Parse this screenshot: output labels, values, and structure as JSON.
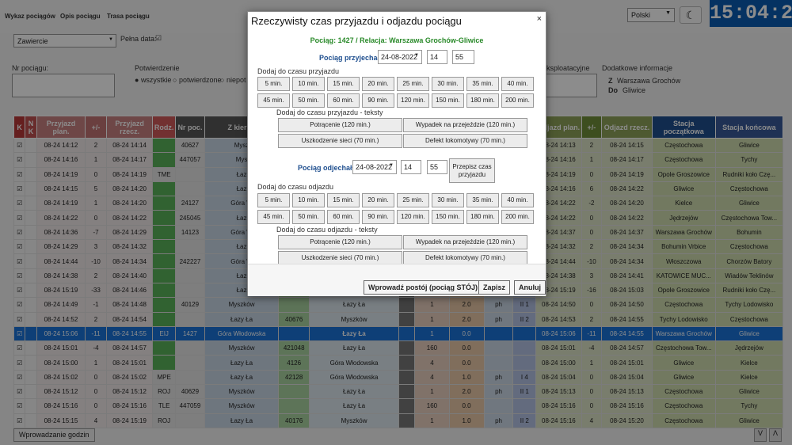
{
  "nav": {
    "items": [
      "Wykaz pociągów",
      "Opis pociągu",
      "Trasa pociągu"
    ]
  },
  "lang": {
    "value": "Polski"
  },
  "clock": "15:04:27",
  "filters": {
    "station": "Zawiercie",
    "full_date_label": "Pełna data:",
    "full_date_check": "☑",
    "train_no_label": "Nr pociągu:",
    "confirm_label": "Potwierdzenie",
    "confirm_opts": [
      "wszystkie",
      "potwierdzone",
      "niepot"
    ],
    "exploit_label": "ksploatacyjne",
    "extra_label": "Dodatkowe informacje",
    "from_prefix": "Z",
    "from_value": "Warszawa Grochów",
    "to_prefix": "Do",
    "to_value": "Gliwice"
  },
  "table": {
    "headers": [
      "K",
      "N K",
      "Przyjazd plan.",
      "+/-",
      "Przyjazd rzecz.",
      "Rodz.",
      "Nr poc.",
      "Z kierun",
      "",
      "",
      "",
      "",
      "",
      "",
      "",
      "Odjazd plan.",
      "+/-",
      "Odjazd rzecz.",
      "Stacja początkowa",
      "Stacja końcowa"
    ],
    "rows": [
      {
        "k": "☑",
        "arr_plan": "08-24 14:12",
        "d1": "2",
        "arr_real": "08-24 14:14",
        "kind": "",
        "no": "40627",
        "from": "Mysz",
        "c1": "",
        "c2": "",
        "c3": "",
        "c4": "",
        "c5": "",
        "c6": "",
        "c7": "",
        "dep_plan": "08-24 14:13",
        "d2": "2",
        "dep_real": "08-24 14:15",
        "st": "Częstochowa",
        "end": "Gliwice"
      },
      {
        "k": "☑",
        "arr_plan": "08-24 14:16",
        "d1": "1",
        "arr_real": "08-24 14:17",
        "kind": "",
        "no": "447057",
        "from": "Mys",
        "c1": "",
        "c2": "",
        "c3": "",
        "c4": "",
        "c5": "",
        "c6": "",
        "c7": "",
        "dep_plan": "08-24 14:16",
        "d2": "1",
        "dep_real": "08-24 14:17",
        "st": "Częstochowa",
        "end": "Tychy"
      },
      {
        "k": "☑",
        "arr_plan": "08-24 14:19",
        "d1": "0",
        "arr_real": "08-24 14:19",
        "kind": "TME",
        "no": "",
        "from": "Łaz",
        "c1": "",
        "c2": "",
        "c3": "",
        "c4": "",
        "c5": "",
        "c6": "",
        "c7": "",
        "dep_plan": "08-24 14:19",
        "d2": "0",
        "dep_real": "08-24 14:19",
        "st": "Opole Groszowice",
        "end": "Rudniki koło Czę..."
      },
      {
        "k": "☑",
        "arr_plan": "08-24 14:15",
        "d1": "5",
        "arr_real": "08-24 14:20",
        "kind": "",
        "no": "",
        "from": "Łaz",
        "c1": "",
        "c2": "",
        "c3": "",
        "c4": "",
        "c5": "",
        "c6": "",
        "c7": "",
        "dep_plan": "08-24 14:16",
        "d2": "6",
        "dep_real": "08-24 14:22",
        "st": "Gliwice",
        "end": "Częstochowa"
      },
      {
        "k": "☑",
        "arr_plan": "08-24 14:19",
        "d1": "1",
        "arr_real": "08-24 14:20",
        "kind": "",
        "no": "24127",
        "from": "Góra W",
        "c1": "",
        "c2": "",
        "c3": "",
        "c4": "",
        "c5": "",
        "c6": "",
        "c7": "",
        "dep_plan": "08-24 14:22",
        "d2": "-2",
        "dep_real": "08-24 14:20",
        "st": "Kielce",
        "end": "Gliwice"
      },
      {
        "k": "☑",
        "arr_plan": "08-24 14:22",
        "d1": "0",
        "arr_real": "08-24 14:22",
        "kind": "",
        "no": "245045",
        "from": "Łaz",
        "c1": "",
        "c2": "",
        "c3": "",
        "c4": "",
        "c5": "",
        "c6": "",
        "c7": "",
        "dep_plan": "08-24 14:22",
        "d2": "0",
        "dep_real": "08-24 14:22",
        "st": "Jędrzejów",
        "end": "Częstochowa Tow..."
      },
      {
        "k": "☑",
        "arr_plan": "08-24 14:36",
        "d1": "-7",
        "arr_real": "08-24 14:29",
        "kind": "",
        "no": "14123",
        "from": "Góra W",
        "c1": "",
        "c2": "",
        "c3": "",
        "c4": "",
        "c5": "",
        "c6": "",
        "c7": "",
        "dep_plan": "08-24 14:37",
        "d2": "0",
        "dep_real": "08-24 14:37",
        "st": "Warszawa Grochów",
        "end": "Bohumin"
      },
      {
        "k": "☑",
        "arr_plan": "08-24 14:29",
        "d1": "3",
        "arr_real": "08-24 14:32",
        "kind": "",
        "no": "",
        "from": "Łaz",
        "c1": "",
        "c2": "",
        "c3": "",
        "c4": "",
        "c5": "",
        "c6": "",
        "c7": "",
        "dep_plan": "08-24 14:32",
        "d2": "2",
        "dep_real": "08-24 14:34",
        "st": "Bohumin Vrbice",
        "end": "Częstochowa"
      },
      {
        "k": "☑",
        "arr_plan": "08-24 14:44",
        "d1": "-10",
        "arr_real": "08-24 14:34",
        "kind": "",
        "no": "242227",
        "from": "Góra W",
        "c1": "",
        "c2": "",
        "c3": "",
        "c4": "",
        "c5": "",
        "c6": "",
        "c7": "",
        "dep_plan": "08-24 14:44",
        "d2": "-10",
        "dep_real": "08-24 14:34",
        "st": "Włoszczowa",
        "end": "Chorzów Batory"
      },
      {
        "k": "☑",
        "arr_plan": "08-24 14:38",
        "d1": "2",
        "arr_real": "08-24 14:40",
        "kind": "",
        "no": "",
        "from": "Łaz",
        "c1": "",
        "c2": "",
        "c3": "",
        "c4": "",
        "c5": "",
        "c6": "",
        "c7": "",
        "dep_plan": "08-24 14:38",
        "d2": "3",
        "dep_real": "08-24 14:41",
        "st": "KATOWICE MUC...",
        "end": "Wiadów Teklinów"
      },
      {
        "k": "☑",
        "arr_plan": "08-24 15:19",
        "d1": "-33",
        "arr_real": "08-24 14:46",
        "kind": "",
        "no": "",
        "from": "Łaz",
        "c1": "",
        "c2": "",
        "c3": "",
        "c4": "",
        "c5": "",
        "c6": "",
        "c7": "",
        "dep_plan": "08-24 15:19",
        "d2": "-16",
        "dep_real": "08-24 15:03",
        "st": "Opole Groszowice",
        "end": "Rudniki koło Czę..."
      },
      {
        "k": "☑",
        "arr_plan": "08-24 14:49",
        "d1": "-1",
        "arr_real": "08-24 14:48",
        "kind": "",
        "no": "40129",
        "from": "Myszków",
        "c1": "",
        "c2": "Łazy Ła",
        "c3": "",
        "c4": "1",
        "c5": "2.0",
        "c6": "ph",
        "c7": "II 1",
        "dep_plan": "08-24 14:50",
        "d2": "0",
        "dep_real": "08-24 14:50",
        "st": "Częstochowa",
        "end": "Tychy Lodowisko"
      },
      {
        "k": "☑",
        "arr_plan": "08-24 14:52",
        "d1": "2",
        "arr_real": "08-24 14:54",
        "kind": "",
        "no": "",
        "from": "Łazy Ła",
        "c1": "40676",
        "c2": "Myszków",
        "c3": "",
        "c4": "1",
        "c5": "2.0",
        "c6": "ph",
        "c7": "II 2",
        "dep_plan": "08-24 14:53",
        "d2": "2",
        "dep_real": "08-24 14:55",
        "st": "Tychy Lodowisko",
        "end": "Częstochowa"
      },
      {
        "k": "☑",
        "arr_plan": "08-24 15:06",
        "d1": "-11",
        "arr_real": "08-24 14:55",
        "kind": "EIJ",
        "no": "1427",
        "from": "Góra Włodowska",
        "c1": "",
        "c2": "Łazy Ła",
        "c3": "",
        "c4": "1",
        "c5": "0.0",
        "c6": "",
        "c7": "",
        "dep_plan": "08-24 15:06",
        "d2": "-11",
        "dep_real": "08-24 14:55",
        "st": "Warszawa Grochów",
        "end": "Gliwice",
        "selected": true
      },
      {
        "k": "☑",
        "arr_plan": "08-24 15:01",
        "d1": "-4",
        "arr_real": "08-24 14:57",
        "kind": "",
        "no": "",
        "from": "Myszków",
        "c1": "421048",
        "c2": "Łazy Ła",
        "c3": "",
        "c4": "160",
        "c5": "0.0",
        "c6": "",
        "c7": "",
        "dep_plan": "08-24 15:01",
        "d2": "-4",
        "dep_real": "08-24 14:57",
        "st": "Częstochowa Tow...",
        "end": "Jędrzejów"
      },
      {
        "k": "☑",
        "arr_plan": "08-24 15:00",
        "d1": "1",
        "arr_real": "08-24 15:01",
        "kind": "",
        "no": "",
        "from": "Łazy Ła",
        "c1": "4126",
        "c2": "Góra Włodowska",
        "c3": "",
        "c4": "4",
        "c5": "0.0",
        "c6": "",
        "c7": "",
        "dep_plan": "08-24 15:00",
        "d2": "1",
        "dep_real": "08-24 15:01",
        "st": "Gliwice",
        "end": "Kielce"
      },
      {
        "k": "☑",
        "arr_plan": "08-24 15:02",
        "d1": "0",
        "arr_real": "08-24 15:02",
        "kind": "MPE",
        "no": "",
        "from": "Łazy Ła",
        "c1": "42128",
        "c2": "Góra Włodowska",
        "c3": "",
        "c4": "4",
        "c5": "1.0",
        "c6": "ph",
        "c7": "I 4",
        "dep_plan": "08-24 15:04",
        "d2": "0",
        "dep_real": "08-24 15:04",
        "st": "Gliwice",
        "end": "Kielce"
      },
      {
        "k": "☑",
        "arr_plan": "08-24 15:12",
        "d1": "0",
        "arr_real": "08-24 15:12",
        "kind": "ROJ",
        "no": "40629",
        "from": "Myszków",
        "c1": "",
        "c2": "Łazy Ła",
        "c3": "",
        "c4": "1",
        "c5": "2.0",
        "c6": "ph",
        "c7": "II 1",
        "dep_plan": "08-24 15:13",
        "d2": "0",
        "dep_real": "08-24 15:13",
        "st": "Częstochowa",
        "end": "Gliwice"
      },
      {
        "k": "☑",
        "arr_plan": "08-24 15:16",
        "d1": "0",
        "arr_real": "08-24 15:16",
        "kind": "TLE",
        "no": "447059",
        "from": "Myszków",
        "c1": "",
        "c2": "Łazy Ła",
        "c3": "",
        "c4": "160",
        "c5": "0.0",
        "c6": "",
        "c7": "",
        "dep_plan": "08-24 15:16",
        "d2": "0",
        "dep_real": "08-24 15:16",
        "st": "Częstochowa",
        "end": "Tychy"
      },
      {
        "k": "☑",
        "arr_plan": "08-24 15:15",
        "d1": "4",
        "arr_real": "08-24 15:19",
        "kind": "ROJ",
        "no": "",
        "from": "Łazy Ła",
        "c1": "40176",
        "c2": "Myszków",
        "c3": "",
        "c4": "1",
        "c5": "1.0",
        "c6": "ph",
        "c7": "II 2",
        "dep_plan": "08-24 15:16",
        "d2": "4",
        "dep_real": "08-24 15:20",
        "st": "Częstochowa",
        "end": "Gliwice"
      }
    ]
  },
  "bottom": {
    "button": "Wprowadzanie godzin",
    "nav": [
      "V",
      "Λ"
    ]
  },
  "dialog": {
    "title": "Rzeczywisty czas przyjazdu i odjazdu pociągu",
    "close": "×",
    "train_info": "Pociąg: 1427 / Relacja: Warszawa Grochów-Gliwice",
    "arrival_label": "Pociąg przyjechał:",
    "arrival_date": "24-08-2022",
    "arrival_hour": "14",
    "arrival_min": "55",
    "add_arrival_label": "Dodaj do czasu przyjazdu",
    "minute_buttons": [
      "5 min.",
      "10 min.",
      "15 min.",
      "20 min.",
      "25 min.",
      "30 min.",
      "35 min.",
      "40 min.",
      "45 min.",
      "50 min.",
      "60 min.",
      "90 min.",
      "120 min.",
      "150 min.",
      "180 min.",
      "200 min."
    ],
    "add_arrival_text_label": "Dodaj do czasu przyjazdu - teksty",
    "text_buttons": [
      "Potrącenie (120 min.)",
      "Wypadek na przejeździe (120 min.)",
      "Uszkodzenie sieci (70 min.)",
      "Defekt lokomotywy (70 min.)"
    ],
    "departure_label": "Pociąg odjechał:",
    "departure_date": "24-08-2022",
    "departure_hour": "14",
    "departure_min": "55",
    "copy_button": "Przepisz czas przyjazdu",
    "add_departure_label": "Dodaj do czasu odjazdu",
    "add_departure_text_label": "Dodaj do czasu odjazdu - teksty",
    "stop_button": "Wprowadź postój (pociąg STÓJ)",
    "save_button": "Zapisz",
    "cancel_button": "Anuluj"
  },
  "colors": {
    "hdr_k": "#b83a3a",
    "hdr_nk": "#c05050",
    "hdr_plan": "#c98282",
    "hdr_d": "#c27373",
    "hdr_kind": "#d05a5a",
    "hdr_no": "#585858",
    "hdr_dep": "#8fa35a",
    "hdr_dep_d": "#6f8f3a",
    "hdr_st": "#1f4f8f",
    "hdr_end": "#3a5a99",
    "green_text": "#2a8a2a",
    "blue_text": "#1f4f8f",
    "selected": "#1a73d9"
  }
}
